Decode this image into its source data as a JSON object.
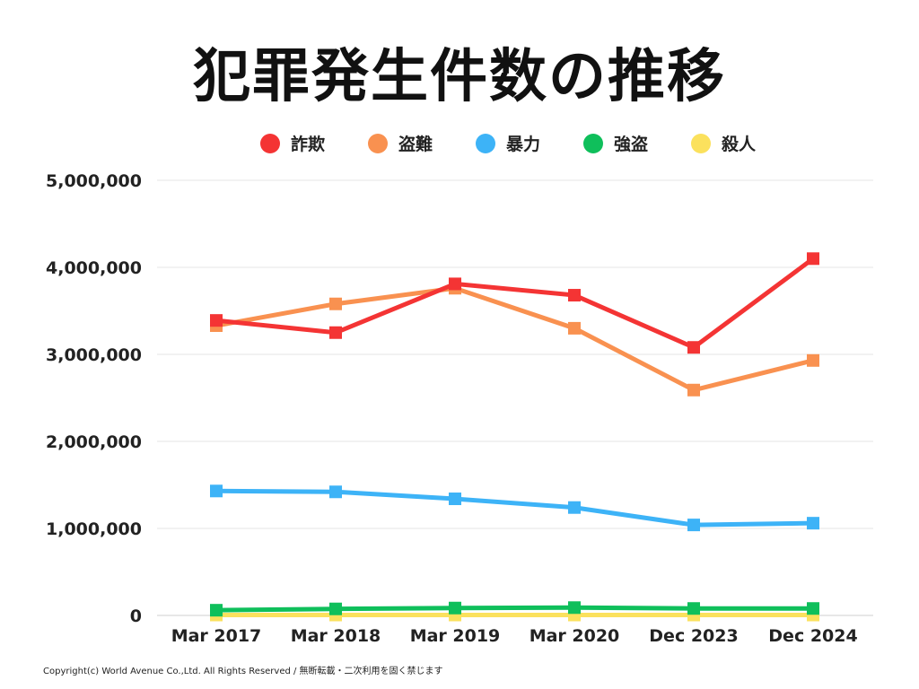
{
  "chart_data": {
    "type": "line",
    "title": "犯罪発生件数の推移",
    "categories": [
      "Mar 2017",
      "Mar 2018",
      "Mar 2019",
      "Mar 2020",
      "Dec 2023",
      "Dec 2024"
    ],
    "series": [
      {
        "name": "詐欺",
        "color": "#f43434",
        "values": [
          3390000,
          3250000,
          3810000,
          3680000,
          3080000,
          4100000
        ]
      },
      {
        "name": "盗難",
        "color": "#f99150",
        "values": [
          3330000,
          3580000,
          3760000,
          3300000,
          2590000,
          2930000
        ]
      },
      {
        "name": "暴力",
        "color": "#3db3f7",
        "values": [
          1430000,
          1420000,
          1340000,
          1240000,
          1040000,
          1060000
        ]
      },
      {
        "name": "強盗",
        "color": "#0fbf5b",
        "values": [
          60000,
          75000,
          85000,
          90000,
          80000,
          80000
        ]
      },
      {
        "name": "殺人",
        "color": "#fbe15d",
        "values": [
          5000,
          5000,
          5000,
          5000,
          5000,
          5000
        ]
      }
    ],
    "yticks": [
      "5,000,000",
      "4,000,000",
      "3,000,000",
      "2,000,000",
      "1,000,000",
      "0"
    ],
    "ylim": [
      0,
      5000000
    ],
    "grid": true,
    "legend": "top",
    "xlabel": "",
    "ylabel": ""
  },
  "footer": "Copyright(c) World Avenue Co.,Ltd. All Rights Reserved / 無断転載・二次利用を固く禁じます"
}
